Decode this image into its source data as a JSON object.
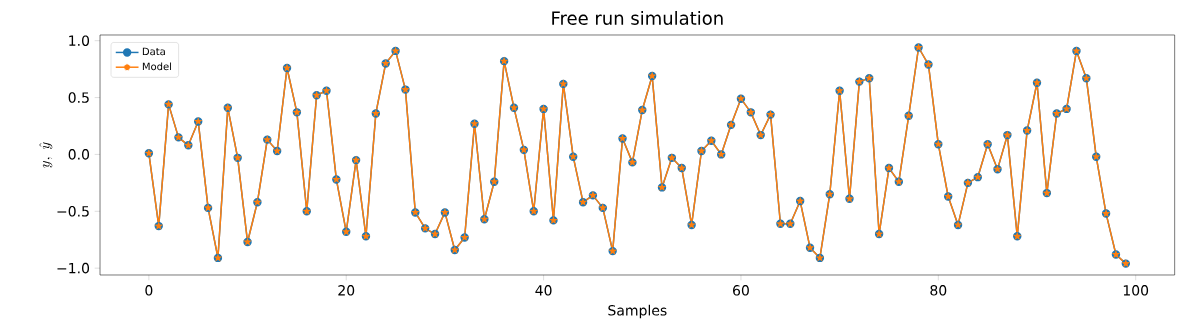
{
  "chart_data": {
    "type": "line",
    "title": "Free run simulation",
    "xlabel": "Samples",
    "ylabel": "y,\\ \\hat{y}",
    "x": [
      0,
      1,
      2,
      3,
      4,
      5,
      6,
      7,
      8,
      9,
      10,
      11,
      12,
      13,
      14,
      15,
      16,
      17,
      18,
      19,
      20,
      21,
      22,
      23,
      24,
      25,
      26,
      27,
      28,
      29,
      30,
      31,
      32,
      33,
      34,
      35,
      36,
      37,
      38,
      39,
      40,
      41,
      42,
      43,
      44,
      45,
      46,
      47,
      48,
      49,
      50,
      51,
      52,
      53,
      54,
      55,
      56,
      57,
      58,
      59,
      60,
      61,
      62,
      63,
      64,
      65,
      66,
      67,
      68,
      69,
      70,
      71,
      72,
      73,
      74,
      75,
      76,
      77,
      78,
      79,
      80,
      81,
      82,
      83,
      84,
      85,
      86,
      87,
      88,
      89,
      90,
      91,
      92,
      93,
      94,
      95,
      96,
      97,
      98,
      99
    ],
    "series": [
      {
        "name": "Data",
        "color": "#1f77b4",
        "marker": "circle",
        "values": [
          0.01,
          -0.63,
          0.44,
          0.15,
          0.08,
          0.29,
          -0.47,
          -0.91,
          0.41,
          -0.03,
          -0.77,
          -0.42,
          0.13,
          0.03,
          0.76,
          0.37,
          -0.5,
          0.52,
          0.56,
          -0.22,
          -0.68,
          -0.05,
          -0.72,
          0.36,
          0.8,
          0.91,
          0.57,
          -0.51,
          -0.65,
          -0.7,
          -0.51,
          -0.84,
          -0.73,
          0.27,
          -0.57,
          -0.24,
          0.82,
          0.41,
          0.04,
          -0.5,
          0.4,
          -0.58,
          0.62,
          -0.02,
          -0.42,
          -0.36,
          -0.47,
          -0.85,
          0.14,
          -0.07,
          0.39,
          0.69,
          -0.29,
          -0.03,
          -0.12,
          -0.62,
          0.03,
          0.12,
          0.0,
          0.26,
          0.49,
          0.37,
          0.17,
          0.35,
          -0.61,
          -0.61,
          -0.41,
          -0.82,
          -0.91,
          -0.35,
          0.56,
          -0.39,
          0.64,
          0.67,
          -0.7,
          -0.12,
          -0.24,
          0.34,
          0.94,
          0.79,
          0.09,
          -0.37,
          -0.62,
          -0.25,
          -0.2,
          0.09,
          -0.13,
          0.17,
          -0.72,
          0.21,
          0.63,
          -0.34,
          0.36,
          0.4,
          0.91,
          0.67,
          -0.02,
          -0.52,
          -0.88,
          -0.96
        ]
      },
      {
        "name": "Model",
        "color": "#ff7f0e",
        "marker": "star",
        "values": [
          0.01,
          -0.63,
          0.44,
          0.15,
          0.08,
          0.29,
          -0.47,
          -0.91,
          0.41,
          -0.03,
          -0.77,
          -0.42,
          0.13,
          0.03,
          0.76,
          0.37,
          -0.5,
          0.52,
          0.56,
          -0.22,
          -0.68,
          -0.05,
          -0.72,
          0.36,
          0.8,
          0.91,
          0.57,
          -0.51,
          -0.65,
          -0.7,
          -0.51,
          -0.84,
          -0.73,
          0.27,
          -0.57,
          -0.24,
          0.82,
          0.41,
          0.04,
          -0.5,
          0.4,
          -0.58,
          0.62,
          -0.02,
          -0.42,
          -0.36,
          -0.47,
          -0.85,
          0.14,
          -0.07,
          0.39,
          0.69,
          -0.29,
          -0.03,
          -0.12,
          -0.62,
          0.03,
          0.12,
          0.0,
          0.26,
          0.49,
          0.37,
          0.17,
          0.35,
          -0.61,
          -0.61,
          -0.41,
          -0.82,
          -0.91,
          -0.35,
          0.56,
          -0.39,
          0.64,
          0.67,
          -0.7,
          -0.12,
          -0.24,
          0.34,
          0.94,
          0.79,
          0.09,
          -0.37,
          -0.62,
          -0.25,
          -0.2,
          0.09,
          -0.13,
          0.17,
          -0.72,
          0.21,
          0.63,
          -0.34,
          0.36,
          0.4,
          0.91,
          0.67,
          -0.02,
          -0.52,
          -0.88,
          -0.96
        ]
      }
    ],
    "xlim": [
      -4.95,
      103.95
    ],
    "ylim": [
      -1.06,
      1.05
    ],
    "xticks": [
      0,
      20,
      40,
      60,
      80,
      100
    ],
    "yticks": [
      {
        "value": -1,
        "label": "−1.0"
      },
      {
        "value": -0.5,
        "label": "−0.5"
      },
      {
        "value": 0,
        "label": "0.0"
      },
      {
        "value": 0.5,
        "label": "0.5"
      },
      {
        "value": 1,
        "label": "1.0"
      }
    ],
    "legend": "top left",
    "line_style": "solid"
  }
}
